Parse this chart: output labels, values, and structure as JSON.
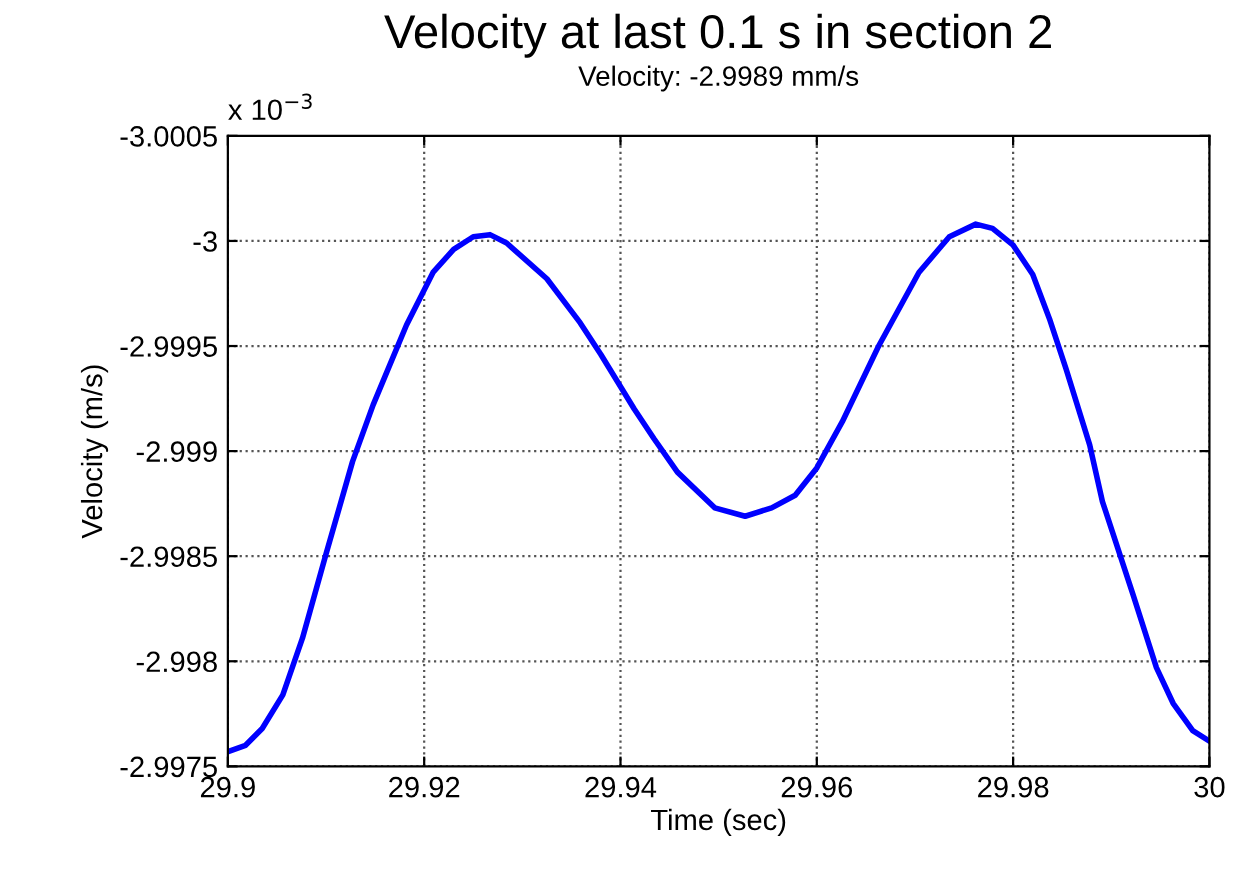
{
  "chart_data": {
    "type": "line",
    "title": "Velocity at last 0.1 s in section 2",
    "subtitle": "Velocity: -2.9989 mm/s",
    "xlabel": "Time (sec)",
    "ylabel": "Velocity (m/s)",
    "annotations": [
      "x 10$^{−3}$"
    ],
    "x": [
      29.9,
      29.9018,
      29.9035,
      29.9056,
      29.9076,
      29.91,
      29.9127,
      29.9148,
      29.9165,
      29.9182,
      29.9209,
      29.923,
      29.925,
      29.9267,
      29.9284,
      29.9325,
      29.9359,
      29.938,
      29.9414,
      29.9434,
      29.9458,
      29.9496,
      29.9527,
      29.9554,
      29.9578,
      29.96,
      29.9626,
      29.9663,
      29.9704,
      29.9735,
      29.9762,
      29.9779,
      29.98,
      29.982,
      29.9837,
      29.9854,
      29.9878,
      29.9891,
      29.9922,
      29.9946,
      29.9963,
      29.9983,
      30
    ],
    "series": [
      {
        "color": "#0000ff",
        "values": [
          -2.99757,
          -2.9976,
          -2.99768,
          -2.99784,
          -2.99811,
          -2.99851,
          -2.99895,
          -2.99922,
          -2.99941,
          -2.9996,
          -2.99985,
          -2.99996,
          -3.00002,
          -3.00003,
          -2.99999,
          -2.99982,
          -2.99961,
          -2.99946,
          -2.9992,
          -2.99906,
          -2.9989,
          -2.99873,
          -2.99869,
          -2.99873,
          -2.99879,
          -2.99892,
          -2.99914,
          -2.9995,
          -2.99985,
          -3.00002,
          -3.00008,
          -3.00006,
          -2.99998,
          -2.99984,
          -2.99963,
          -2.99939,
          -2.99903,
          -2.99876,
          -2.99832,
          -2.99797,
          -2.9978,
          -2.99767,
          -2.99762
        ]
      }
    ],
    "xlim": [
      29.9,
      30
    ],
    "xticks": [
      29.9,
      29.92,
      29.94,
      29.96,
      29.98,
      30
    ],
    "ylim": [
      -2.9975,
      -3.0005
    ],
    "yticks": [
      -3.0005,
      -3,
      -2.9995,
      -2.999,
      -2.9985,
      -2.998,
      -2.9975
    ],
    "grid": true,
    "line_style": "solid"
  }
}
